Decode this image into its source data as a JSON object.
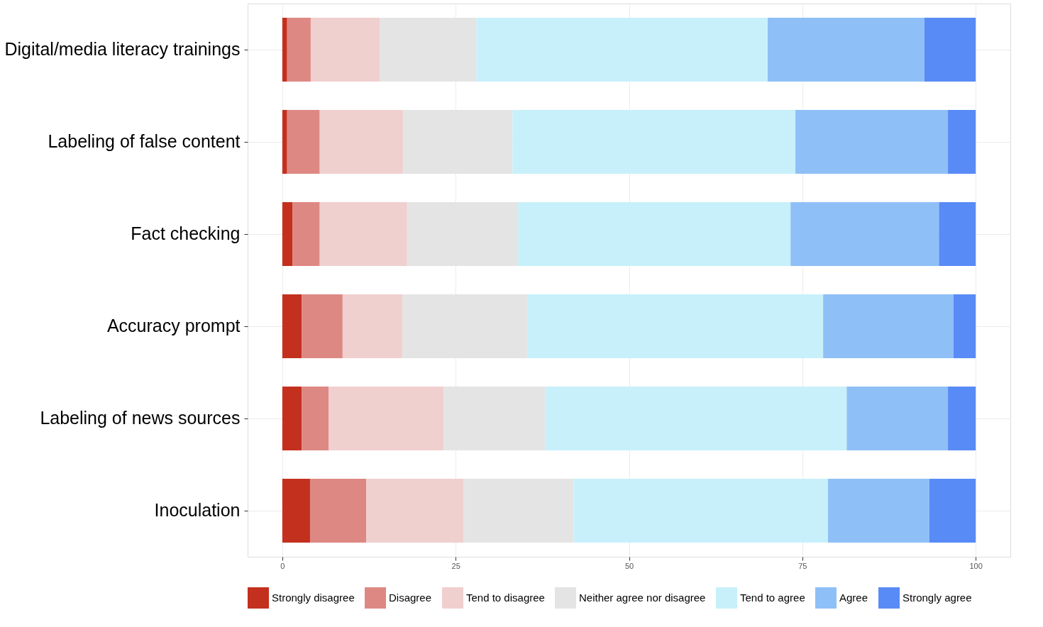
{
  "chart_data": {
    "type": "bar",
    "orientation": "horizontal",
    "stacked": true,
    "categories": [
      "Digital/media literacy trainings",
      "Labeling of false content",
      "Fact checking",
      "Accuracy prompt",
      "Labeling of news sources",
      "Inoculation"
    ],
    "series": [
      {
        "name": "Strongly disagree",
        "color": "#c3301e",
        "values": [
          0.7,
          0.7,
          1.5,
          2.8,
          2.8,
          4.0
        ]
      },
      {
        "name": "Disagree",
        "color": "#de8883",
        "values": [
          3.4,
          4.7,
          3.9,
          5.9,
          3.9,
          8.1
        ]
      },
      {
        "name": "Tend to disagree",
        "color": "#f0cfcf",
        "values": [
          10.0,
          12.0,
          12.6,
          8.6,
          16.6,
          14.0
        ]
      },
      {
        "name": "Neither agree nor disagree",
        "color": "#e4e4e4",
        "values": [
          13.9,
          15.8,
          16.0,
          18.0,
          14.6,
          15.9
        ]
      },
      {
        "name": "Tend to agree",
        "color": "#c8f0fb",
        "values": [
          42.0,
          40.8,
          39.3,
          42.7,
          43.5,
          36.7
        ]
      },
      {
        "name": "Agree",
        "color": "#8ec0f7",
        "values": [
          22.6,
          22.0,
          21.4,
          18.8,
          14.6,
          14.6
        ]
      },
      {
        "name": "Strongly agree",
        "color": "#588bf5",
        "values": [
          7.4,
          4.0,
          5.3,
          3.2,
          4.0,
          6.7
        ]
      }
    ],
    "xlim": [
      -5,
      105
    ],
    "xticks": [
      0,
      25,
      50,
      75,
      100
    ],
    "grid": true,
    "legend": "bottom"
  }
}
